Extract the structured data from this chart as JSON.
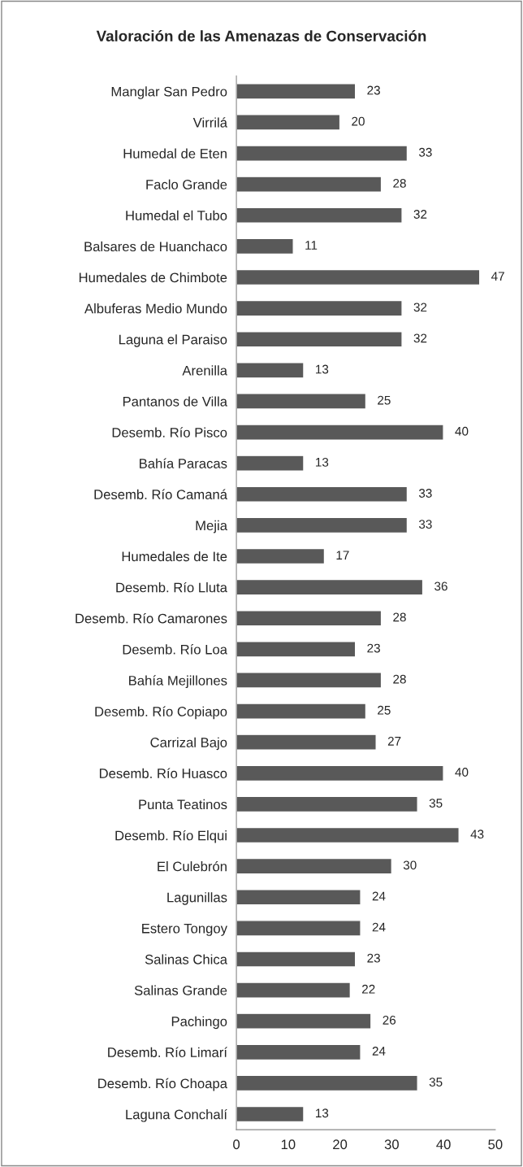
{
  "chart_data": {
    "type": "bar",
    "orientation": "horizontal",
    "title": "Valoración de las Amenazas de Conservación",
    "categories": [
      "Manglar San Pedro",
      "Virrilá",
      "Humedal de Eten",
      "Faclo Grande",
      "Humedal el Tubo",
      "Balsares de Huanchaco",
      "Humedales de Chimbote",
      "Albuferas Medio Mundo",
      "Laguna el Paraiso",
      "Arenilla",
      "Pantanos de Villa",
      "Desemb. Río Pisco",
      "Bahía Paracas",
      "Desemb. Río Camaná",
      "Mejia",
      "Humedales de Ite",
      "Desemb. Río Lluta",
      "Desemb. Río Camarones",
      "Desemb. Río Loa",
      "Bahía Mejillones",
      "Desemb. Río Copiapo",
      "Carrizal Bajo",
      "Desemb. Río Huasco",
      "Punta Teatinos",
      "Desemb. Río Elqui",
      "El Culebrón",
      "Lagunillas",
      "Estero Tongoy",
      "Salinas Chica",
      "Salinas Grande",
      "Pachingo",
      "Desemb. Río Limarí",
      "Desemb. Río Choapa",
      "Laguna Conchalí"
    ],
    "values": [
      23,
      20,
      33,
      28,
      32,
      11,
      47,
      32,
      32,
      13,
      25,
      40,
      13,
      33,
      33,
      17,
      36,
      28,
      23,
      28,
      25,
      27,
      40,
      35,
      43,
      30,
      24,
      24,
      23,
      22,
      26,
      24,
      35,
      13
    ],
    "color": "#595959",
    "data_labels": true,
    "xlim": [
      0,
      50
    ],
    "xticks": [
      0,
      10,
      20,
      30,
      40,
      50
    ],
    "grid": false,
    "legend": false
  }
}
